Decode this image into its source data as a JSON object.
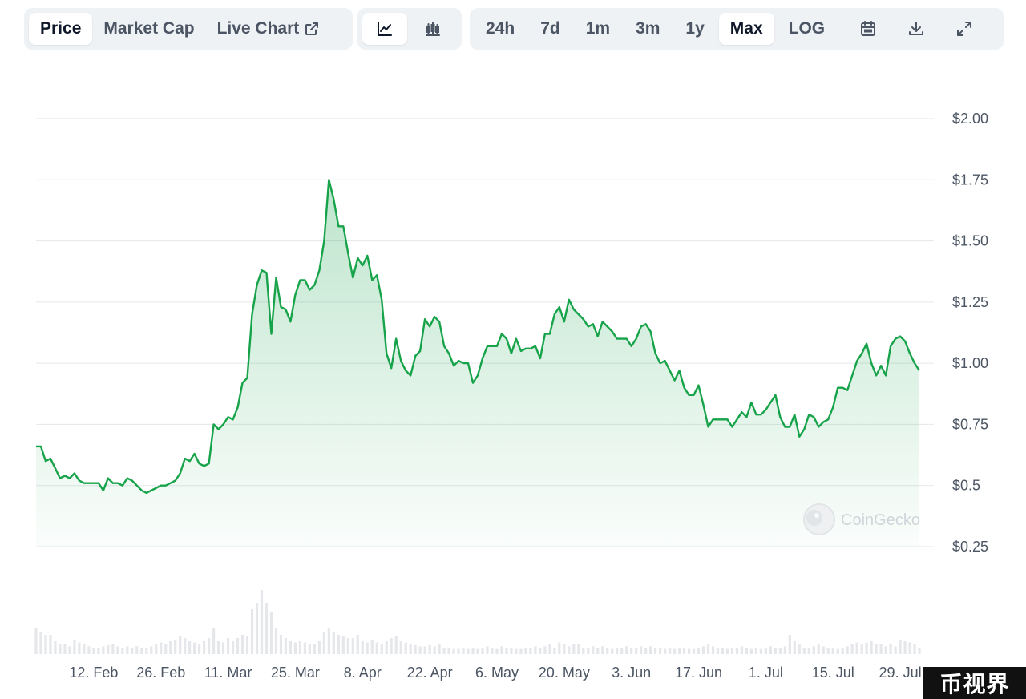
{
  "tabs": [
    {
      "label": "Price",
      "active": true
    },
    {
      "label": "Market Cap",
      "active": false
    },
    {
      "label": "Live Chart",
      "active": false
    }
  ],
  "chart_styles": [
    {
      "icon": "line-chart-icon",
      "active": true
    },
    {
      "icon": "candlestick-chart-icon",
      "active": false
    }
  ],
  "ranges": [
    {
      "label": "24h",
      "active": false
    },
    {
      "label": "7d",
      "active": false
    },
    {
      "label": "1m",
      "active": false
    },
    {
      "label": "3m",
      "active": false
    },
    {
      "label": "1y",
      "active": false
    },
    {
      "label": "Max",
      "active": true
    },
    {
      "label": "LOG",
      "active": false
    }
  ],
  "tool_icons": [
    "calendar-icon",
    "download-icon",
    "expand-icon"
  ],
  "watermark": "CoinGecko",
  "badge": "币视界",
  "colors": {
    "line": "#16a34a",
    "fill": "#16a34a",
    "grid": "#e5e7eb",
    "volume": "#e5e7eb",
    "axis_text": "#4b5563"
  },
  "chart_data": {
    "type": "area",
    "title": "",
    "xlabel": "",
    "ylabel": "",
    "ylim": [
      0.25,
      2.0
    ],
    "y_ticks": [
      2.0,
      1.75,
      1.5,
      1.25,
      1.0,
      0.75,
      0.5,
      0.25
    ],
    "y_tick_labels": [
      "$2.00",
      "$1.75",
      "$1.50",
      "$1.25",
      "$1.00",
      "$0.75",
      "$0.5",
      "$0.25"
    ],
    "x_tick_labels": [
      "12. Feb",
      "26. Feb",
      "11. Mar",
      "25. Mar",
      "8. Apr",
      "22. Apr",
      "6. May",
      "20. May",
      "3. Jun",
      "17. Jun",
      "1. Jul",
      "15. Jul",
      "29. Jul"
    ],
    "x_tick_days": [
      12,
      26,
      40,
      54,
      68,
      82,
      96,
      110,
      124,
      138,
      152,
      166,
      180
    ],
    "x_range_days": [
      0,
      187
    ],
    "grid": true,
    "legend": "none",
    "series": [
      {
        "points": [
          [
            0,
            0.66
          ],
          [
            1,
            0.66
          ],
          [
            2,
            0.6
          ],
          [
            3,
            0.61
          ],
          [
            4,
            0.57
          ],
          [
            5,
            0.53
          ],
          [
            6,
            0.54
          ],
          [
            7,
            0.53
          ],
          [
            8,
            0.55
          ],
          [
            9,
            0.52
          ],
          [
            10,
            0.51
          ],
          [
            11,
            0.51
          ],
          [
            12,
            0.51
          ],
          [
            13,
            0.51
          ],
          [
            14,
            0.48
          ],
          [
            15,
            0.53
          ],
          [
            16,
            0.51
          ],
          [
            17,
            0.51
          ],
          [
            18,
            0.5
          ],
          [
            19,
            0.53
          ],
          [
            20,
            0.52
          ],
          [
            21,
            0.5
          ],
          [
            22,
            0.48
          ],
          [
            23,
            0.47
          ],
          [
            24,
            0.48
          ],
          [
            25,
            0.49
          ],
          [
            26,
            0.5
          ],
          [
            27,
            0.5
          ],
          [
            28,
            0.51
          ],
          [
            29,
            0.52
          ],
          [
            30,
            0.55
          ],
          [
            31,
            0.61
          ],
          [
            32,
            0.6
          ],
          [
            33,
            0.63
          ],
          [
            34,
            0.59
          ],
          [
            35,
            0.58
          ],
          [
            36,
            0.59
          ],
          [
            37,
            0.75
          ],
          [
            38,
            0.73
          ],
          [
            39,
            0.75
          ],
          [
            40,
            0.78
          ],
          [
            41,
            0.77
          ],
          [
            42,
            0.82
          ],
          [
            43,
            0.92
          ],
          [
            44,
            0.94
          ],
          [
            45,
            1.2
          ],
          [
            46,
            1.32
          ],
          [
            47,
            1.38
          ],
          [
            48,
            1.37
          ],
          [
            49,
            1.12
          ],
          [
            50,
            1.35
          ],
          [
            51,
            1.23
          ],
          [
            52,
            1.22
          ],
          [
            53,
            1.17
          ],
          [
            54,
            1.28
          ],
          [
            55,
            1.34
          ],
          [
            56,
            1.34
          ],
          [
            57,
            1.3
          ],
          [
            58,
            1.32
          ],
          [
            59,
            1.38
          ],
          [
            60,
            1.5
          ],
          [
            61,
            1.75
          ],
          [
            62,
            1.67
          ],
          [
            63,
            1.56
          ],
          [
            64,
            1.56
          ],
          [
            65,
            1.45
          ],
          [
            66,
            1.35
          ],
          [
            67,
            1.43
          ],
          [
            68,
            1.4
          ],
          [
            69,
            1.44
          ],
          [
            70,
            1.34
          ],
          [
            71,
            1.36
          ],
          [
            72,
            1.26
          ],
          [
            73,
            1.04
          ],
          [
            74,
            0.98
          ],
          [
            75,
            1.1
          ],
          [
            76,
            1.01
          ],
          [
            77,
            0.97
          ],
          [
            78,
            0.95
          ],
          [
            79,
            1.03
          ],
          [
            80,
            1.05
          ],
          [
            81,
            1.18
          ],
          [
            82,
            1.15
          ],
          [
            83,
            1.19
          ],
          [
            84,
            1.17
          ],
          [
            85,
            1.07
          ],
          [
            86,
            1.04
          ],
          [
            87,
            0.99
          ],
          [
            88,
            1.01
          ],
          [
            89,
            1.0
          ],
          [
            90,
            1.0
          ],
          [
            91,
            0.92
          ],
          [
            92,
            0.95
          ],
          [
            93,
            1.02
          ],
          [
            94,
            1.07
          ],
          [
            95,
            1.07
          ],
          [
            96,
            1.07
          ],
          [
            97,
            1.12
          ],
          [
            98,
            1.1
          ],
          [
            99,
            1.04
          ],
          [
            100,
            1.1
          ],
          [
            101,
            1.05
          ],
          [
            102,
            1.06
          ],
          [
            103,
            1.06
          ],
          [
            104,
            1.07
          ],
          [
            105,
            1.02
          ],
          [
            106,
            1.12
          ],
          [
            107,
            1.12
          ],
          [
            108,
            1.2
          ],
          [
            109,
            1.23
          ],
          [
            110,
            1.17
          ],
          [
            111,
            1.26
          ],
          [
            112,
            1.22
          ],
          [
            113,
            1.2
          ],
          [
            114,
            1.18
          ],
          [
            115,
            1.15
          ],
          [
            116,
            1.16
          ],
          [
            117,
            1.11
          ],
          [
            118,
            1.17
          ],
          [
            119,
            1.15
          ],
          [
            120,
            1.13
          ],
          [
            121,
            1.1
          ],
          [
            122,
            1.1
          ],
          [
            123,
            1.1
          ],
          [
            124,
            1.07
          ],
          [
            125,
            1.1
          ],
          [
            126,
            1.15
          ],
          [
            127,
            1.16
          ],
          [
            128,
            1.13
          ],
          [
            129,
            1.04
          ],
          [
            130,
            1.0
          ],
          [
            131,
            1.01
          ],
          [
            132,
            0.97
          ],
          [
            133,
            0.93
          ],
          [
            134,
            0.97
          ],
          [
            135,
            0.9
          ],
          [
            136,
            0.87
          ],
          [
            137,
            0.87
          ],
          [
            138,
            0.91
          ],
          [
            139,
            0.83
          ],
          [
            140,
            0.74
          ],
          [
            141,
            0.77
          ],
          [
            142,
            0.77
          ],
          [
            143,
            0.77
          ],
          [
            144,
            0.77
          ],
          [
            145,
            0.74
          ],
          [
            146,
            0.77
          ],
          [
            147,
            0.8
          ],
          [
            148,
            0.78
          ],
          [
            149,
            0.84
          ],
          [
            150,
            0.79
          ],
          [
            151,
            0.79
          ],
          [
            152,
            0.81
          ],
          [
            153,
            0.84
          ],
          [
            154,
            0.87
          ],
          [
            155,
            0.78
          ],
          [
            156,
            0.74
          ],
          [
            157,
            0.74
          ],
          [
            158,
            0.79
          ],
          [
            159,
            0.7
          ],
          [
            160,
            0.73
          ],
          [
            161,
            0.79
          ],
          [
            162,
            0.78
          ],
          [
            163,
            0.74
          ],
          [
            164,
            0.76
          ],
          [
            165,
            0.77
          ],
          [
            166,
            0.82
          ],
          [
            167,
            0.9
          ],
          [
            168,
            0.9
          ],
          [
            169,
            0.89
          ],
          [
            170,
            0.95
          ],
          [
            171,
            1.01
          ],
          [
            172,
            1.04
          ],
          [
            173,
            1.08
          ],
          [
            174,
            1.0
          ],
          [
            175,
            0.95
          ],
          [
            176,
            0.99
          ],
          [
            177,
            0.95
          ],
          [
            178,
            1.07
          ],
          [
            179,
            1.1
          ],
          [
            180,
            1.11
          ],
          [
            181,
            1.09
          ],
          [
            182,
            1.04
          ],
          [
            183,
            1.0
          ],
          [
            184,
            0.97
          ]
        ]
      }
    ],
    "volume": [
      0.4,
      0.35,
      0.3,
      0.3,
      0.2,
      0.15,
      0.15,
      0.12,
      0.22,
      0.18,
      0.15,
      0.12,
      0.1,
      0.1,
      0.12,
      0.14,
      0.16,
      0.12,
      0.1,
      0.12,
      0.1,
      0.12,
      0.1,
      0.1,
      0.12,
      0.15,
      0.18,
      0.15,
      0.2,
      0.22,
      0.28,
      0.25,
      0.2,
      0.18,
      0.15,
      0.2,
      0.25,
      0.4,
      0.2,
      0.18,
      0.25,
      0.2,
      0.25,
      0.3,
      0.28,
      0.7,
      0.8,
      1.0,
      0.8,
      0.65,
      0.4,
      0.3,
      0.25,
      0.2,
      0.18,
      0.2,
      0.18,
      0.15,
      0.15,
      0.2,
      0.35,
      0.4,
      0.35,
      0.3,
      0.28,
      0.25,
      0.25,
      0.3,
      0.2,
      0.18,
      0.22,
      0.18,
      0.16,
      0.2,
      0.25,
      0.28,
      0.2,
      0.18,
      0.15,
      0.14,
      0.12,
      0.12,
      0.14,
      0.12,
      0.15,
      0.1,
      0.1,
      0.08,
      0.08,
      0.1,
      0.08,
      0.1,
      0.08,
      0.1,
      0.12,
      0.1,
      0.08,
      0.12,
      0.1,
      0.1,
      0.08,
      0.08,
      0.1,
      0.1,
      0.12,
      0.1,
      0.12,
      0.15,
      0.1,
      0.18,
      0.15,
      0.12,
      0.15,
      0.15,
      0.1,
      0.1,
      0.12,
      0.1,
      0.12,
      0.1,
      0.08,
      0.1,
      0.1,
      0.12,
      0.1,
      0.1,
      0.12,
      0.1,
      0.12,
      0.1,
      0.1,
      0.08,
      0.1,
      0.08,
      0.1,
      0.1,
      0.08,
      0.08,
      0.1,
      0.12,
      0.15,
      0.12,
      0.1,
      0.1,
      0.08,
      0.1,
      0.1,
      0.12,
      0.1,
      0.08,
      0.1,
      0.08,
      0.1,
      0.12,
      0.1,
      0.1,
      0.12,
      0.3,
      0.2,
      0.15,
      0.1,
      0.1,
      0.12,
      0.15,
      0.12,
      0.1,
      0.1,
      0.08,
      0.1,
      0.12,
      0.15,
      0.18,
      0.15,
      0.18,
      0.2,
      0.15,
      0.15,
      0.12,
      0.15,
      0.12,
      0.22,
      0.2,
      0.18,
      0.15,
      0.1
    ]
  }
}
